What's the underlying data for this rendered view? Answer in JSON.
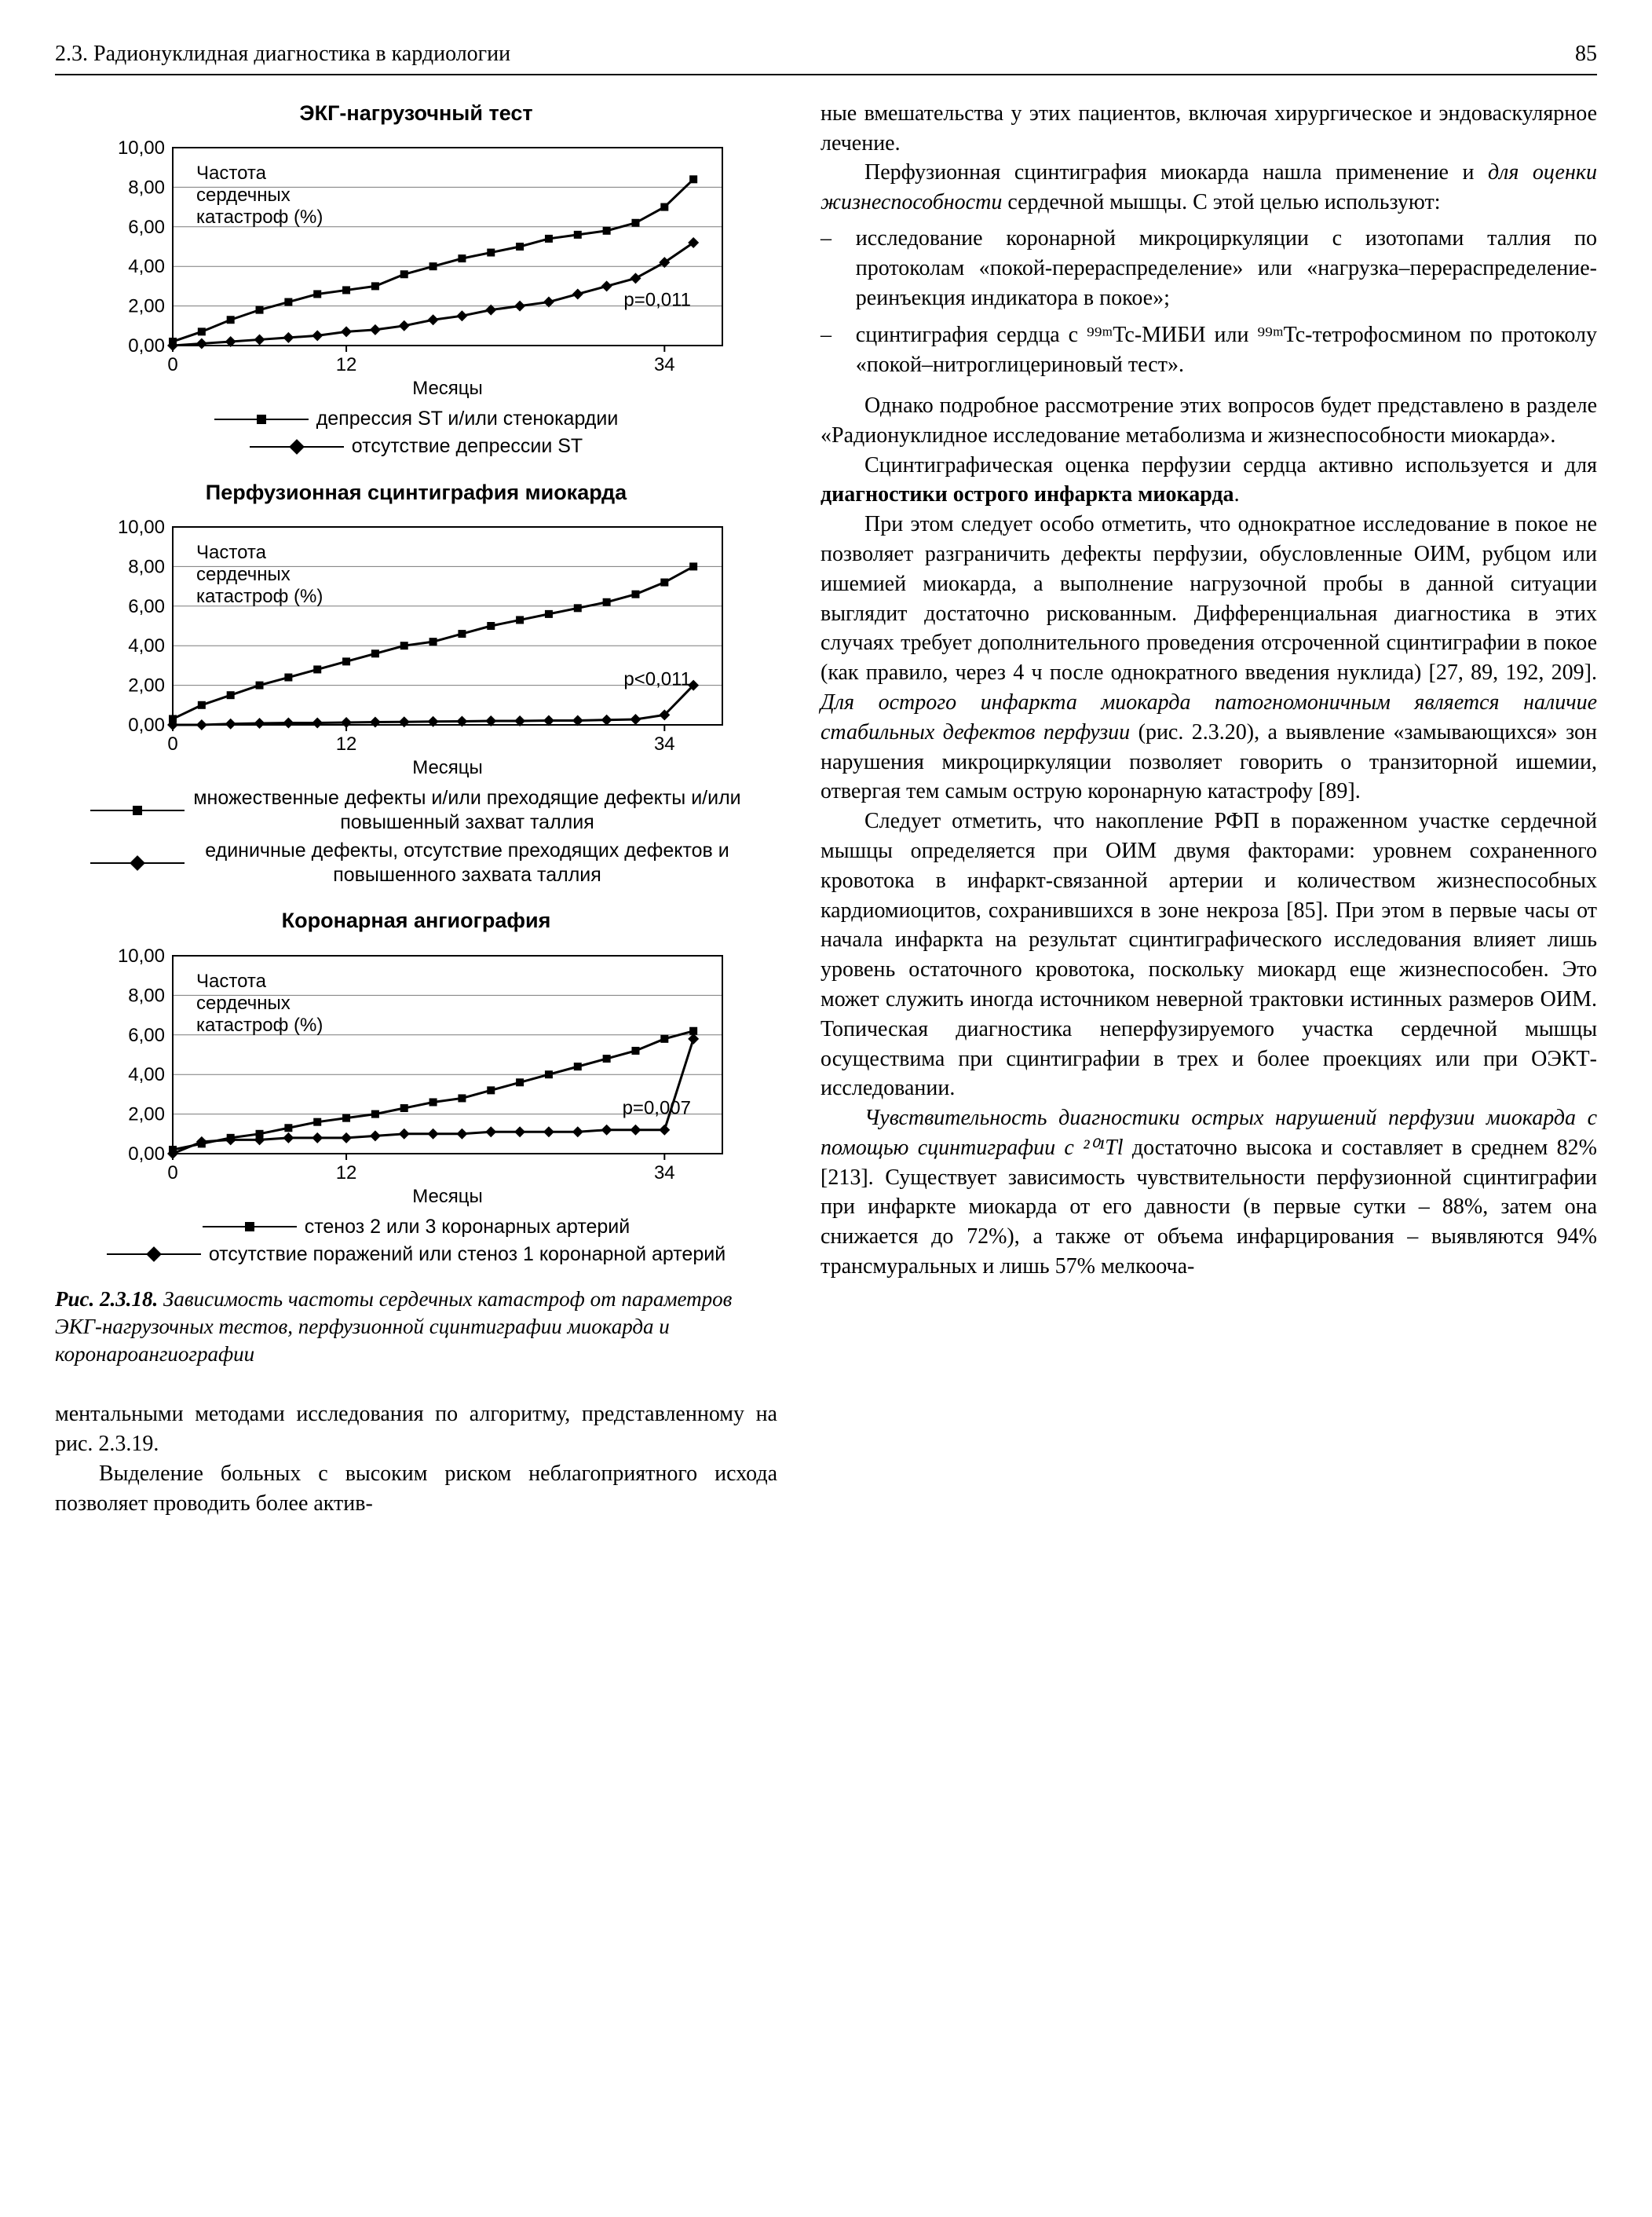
{
  "page": {
    "running_head": "2.3. Радионуклидная диагностика в кардиологии",
    "page_number": "85"
  },
  "charts": {
    "common_style": {
      "bg": "#ffffff",
      "grid_color": "#7a7a7a",
      "axis_color": "#000000",
      "series1_color": "#000000",
      "series2_color": "#000000",
      "line_width": 3,
      "marker_size": 10,
      "title_fontsize": 27,
      "axis_fontsize": 24,
      "font_family": "Arial, sans-serif"
    },
    "chart1": {
      "type": "line",
      "title": "ЭКГ-нагрузочный тест",
      "ylabel_note": "Частота сердечных катастроф (%)",
      "xlabel": "Месяцы",
      "xlim": [
        0,
        38
      ],
      "ylim": [
        0,
        10
      ],
      "xticks": [
        0,
        12,
        34
      ],
      "yticks": [
        0,
        2,
        4,
        6,
        8,
        10
      ],
      "ytick_labels": [
        "0,00",
        "2,00",
        "4,00",
        "6,00",
        "8,00",
        "10,00"
      ],
      "annotation": "p=0,011",
      "series1": {
        "marker": "square",
        "points": [
          [
            0,
            0.2
          ],
          [
            2,
            0.7
          ],
          [
            4,
            1.3
          ],
          [
            6,
            1.8
          ],
          [
            8,
            2.2
          ],
          [
            10,
            2.6
          ],
          [
            12,
            2.8
          ],
          [
            14,
            3.0
          ],
          [
            16,
            3.6
          ],
          [
            18,
            4.0
          ],
          [
            20,
            4.4
          ],
          [
            22,
            4.7
          ],
          [
            24,
            5.0
          ],
          [
            26,
            5.4
          ],
          [
            28,
            5.6
          ],
          [
            30,
            5.8
          ],
          [
            32,
            6.2
          ],
          [
            34,
            7.0
          ],
          [
            36,
            8.4
          ]
        ]
      },
      "series2": {
        "marker": "diamond",
        "points": [
          [
            0,
            0.0
          ],
          [
            2,
            0.1
          ],
          [
            4,
            0.2
          ],
          [
            6,
            0.3
          ],
          [
            8,
            0.4
          ],
          [
            10,
            0.5
          ],
          [
            12,
            0.7
          ],
          [
            14,
            0.8
          ],
          [
            16,
            1.0
          ],
          [
            18,
            1.3
          ],
          [
            20,
            1.5
          ],
          [
            22,
            1.8
          ],
          [
            24,
            2.0
          ],
          [
            26,
            2.2
          ],
          [
            28,
            2.6
          ],
          [
            30,
            3.0
          ],
          [
            32,
            3.4
          ],
          [
            34,
            4.2
          ],
          [
            36,
            5.2
          ]
        ]
      },
      "legend1": "депрессия ST и/или стенокардии",
      "legend2": "отсутствие депрессии ST"
    },
    "chart2": {
      "type": "line",
      "title": "Перфузионная сцинтиграфия миокарда",
      "ylabel_note": "Частота сердечных катастроф (%)",
      "xlabel": "Месяцы",
      "xlim": [
        0,
        38
      ],
      "ylim": [
        0,
        10
      ],
      "xticks": [
        0,
        12,
        34
      ],
      "yticks": [
        0,
        2,
        4,
        6,
        8,
        10
      ],
      "ytick_labels": [
        "0,00",
        "2,00",
        "4,00",
        "6,00",
        "8,00",
        "10,00"
      ],
      "annotation": "p<0,011",
      "series1": {
        "marker": "square",
        "points": [
          [
            0,
            0.3
          ],
          [
            2,
            1.0
          ],
          [
            4,
            1.5
          ],
          [
            6,
            2.0
          ],
          [
            8,
            2.4
          ],
          [
            10,
            2.8
          ],
          [
            12,
            3.2
          ],
          [
            14,
            3.6
          ],
          [
            16,
            4.0
          ],
          [
            18,
            4.2
          ],
          [
            20,
            4.6
          ],
          [
            22,
            5.0
          ],
          [
            24,
            5.3
          ],
          [
            26,
            5.6
          ],
          [
            28,
            5.9
          ],
          [
            30,
            6.2
          ],
          [
            32,
            6.6
          ],
          [
            34,
            7.2
          ],
          [
            36,
            8.0
          ]
        ]
      },
      "series2": {
        "marker": "diamond",
        "points": [
          [
            0,
            0.0
          ],
          [
            2,
            0.0
          ],
          [
            4,
            0.05
          ],
          [
            6,
            0.08
          ],
          [
            8,
            0.1
          ],
          [
            10,
            0.1
          ],
          [
            12,
            0.12
          ],
          [
            14,
            0.14
          ],
          [
            16,
            0.15
          ],
          [
            18,
            0.17
          ],
          [
            20,
            0.18
          ],
          [
            22,
            0.2
          ],
          [
            24,
            0.2
          ],
          [
            26,
            0.22
          ],
          [
            28,
            0.22
          ],
          [
            30,
            0.25
          ],
          [
            32,
            0.28
          ],
          [
            34,
            0.5
          ],
          [
            36,
            2.0
          ]
        ]
      },
      "legend1": "множественные дефекты и/или преходящие дефекты и/или повышенный захват таллия",
      "legend2": "единичные дефекты, отсутствие преходящих дефектов и повышенного захвата таллия"
    },
    "chart3": {
      "type": "line",
      "title": "Коронарная ангиография",
      "ylabel_note": "Частота сердечных катастроф (%)",
      "xlabel": "Месяцы",
      "xlim": [
        0,
        38
      ],
      "ylim": [
        0,
        10
      ],
      "xticks": [
        0,
        12,
        34
      ],
      "yticks": [
        0,
        2,
        4,
        6,
        8,
        10
      ],
      "ytick_labels": [
        "0,00",
        "2,00",
        "4,00",
        "6,00",
        "8,00",
        "10,00"
      ],
      "annotation": "p=0,007",
      "series1": {
        "marker": "square",
        "points": [
          [
            0,
            0.2
          ],
          [
            2,
            0.5
          ],
          [
            4,
            0.8
          ],
          [
            6,
            1.0
          ],
          [
            8,
            1.3
          ],
          [
            10,
            1.6
          ],
          [
            12,
            1.8
          ],
          [
            14,
            2.0
          ],
          [
            16,
            2.3
          ],
          [
            18,
            2.6
          ],
          [
            20,
            2.8
          ],
          [
            22,
            3.2
          ],
          [
            24,
            3.6
          ],
          [
            26,
            4.0
          ],
          [
            28,
            4.4
          ],
          [
            30,
            4.8
          ],
          [
            32,
            5.2
          ],
          [
            34,
            5.8
          ],
          [
            36,
            6.2
          ]
        ]
      },
      "series2": {
        "marker": "diamond",
        "points": [
          [
            0,
            0.0
          ],
          [
            2,
            0.6
          ],
          [
            4,
            0.7
          ],
          [
            6,
            0.7
          ],
          [
            8,
            0.8
          ],
          [
            10,
            0.8
          ],
          [
            12,
            0.8
          ],
          [
            14,
            0.9
          ],
          [
            16,
            1.0
          ],
          [
            18,
            1.0
          ],
          [
            20,
            1.0
          ],
          [
            22,
            1.1
          ],
          [
            24,
            1.1
          ],
          [
            26,
            1.1
          ],
          [
            28,
            1.1
          ],
          [
            30,
            1.2
          ],
          [
            32,
            1.2
          ],
          [
            34,
            1.2
          ],
          [
            36,
            5.8
          ]
        ]
      },
      "legend1": "стеноз 2 или 3 коронарных артерий",
      "legend2": "отсутствие поражений или стеноз 1 коронарной артерий"
    }
  },
  "caption": {
    "fignum": "Рис. 2.3.18.",
    "text": "Зависимость частоты сердечных катастроф от параметров ЭКГ-нагрузочных тестов, перфузионной сцинтиграфии миокарда и коронароангиографии"
  },
  "left_text": {
    "p1": "ментальными методами исследования по алгоритму, представленному на рис. 2.3.19.",
    "p2": "Выделение больных с высоким риском неблагоприятного исхода позволяет проводить более актив-"
  },
  "right_text": {
    "p1": "ные вмешательства у этих пациентов, включая хирургическое и эндоваскулярное лечение.",
    "p2a": "Перфузионная сцинтиграфия миокарда нашла применение и ",
    "p2b_em": "для оценки жизнеспособности",
    "p2c": " сердечной мышцы. С этой целью используют:",
    "li1": "исследование коронарной микроциркуляции с изотопами таллия по протоколам «покой-перераспределение» или «нагрузка–перераспределение-реинъекция индикатора в покое»;",
    "li2": "сцинтиграфия сердца с ⁹⁹ᵐTc-МИБИ или ⁹⁹ᵐTc-тетрофосмином по протоколу «покой–нитроглицериновый тест».",
    "p3": "Однако подробное рассмотрение этих вопросов будет представлено в разделе «Радионуклидное исследование метаболизма и жизнеспособности миокарда».",
    "p4a": "Сцинтиграфическая оценка перфузии сердца активно используется и для ",
    "p4b_bold": "диагностики острого инфаркта миокарда",
    "p4c": ".",
    "p5a": "При этом следует особо отметить, что однократное исследование в покое не позволяет разграничить дефекты перфузии, обусловленные ОИМ, рубцом или ишемией миокарда, а выполнение нагрузочной пробы в данной ситуации выглядит достаточно рискованным. Дифференциальная диагностика в этих случаях требует дополнительного проведения отсроченной сцинтиграфии в покое (как правило, через 4 ч после однократного введения нуклида) [27, 89, 192, 209]. ",
    "p5b_em": "Для острого инфаркта миокарда патогномоничным является наличие стабильных дефектов перфузии",
    "p5c": " (рис. 2.3.20), а выявление «замывающихся» зон нарушения микроциркуляции позволяет говорить о транзиторной ишемии, отвергая тем самым острую коронарную катастрофу [89].",
    "p6": "Следует отметить, что накопление РФП в пораженном участке сердечной мышцы определяется при ОИМ двумя факторами: уровнем сохраненного кровотока в инфаркт-связанной артерии и количеством жизнеспособных кардиомиоцитов, сохранившихся в зоне некроза [85]. При этом в первые часы от начала инфаркта на результат сцинтиграфического исследования влияет лишь уровень остаточного кровотока, поскольку миокард еще жизнеспособен. Это может служить иногда источником неверной трактовки истинных размеров ОИМ. Топическая диагностика неперфузируемого участка сердечной мышцы осуществима при сцинтиграфии в трех и более проекциях или при ОЭКТ-исследовании.",
    "p7a_em": "Чувствительность диагностики острых нарушений перфузии миокарда с помощью сцинтиграфии с ²⁰¹Tl",
    "p7b": " достаточно высока и составляет в среднем 82% [213]. Существует зависимость чувствительности перфузионной сцинтиграфии при инфаркте миокарда от его давности (в первые сутки – 88%, затем она снижается до 72%), а также от объема инфарцирования – выявляются 94% трансмуральных и лишь 57% мелкооча-"
  }
}
